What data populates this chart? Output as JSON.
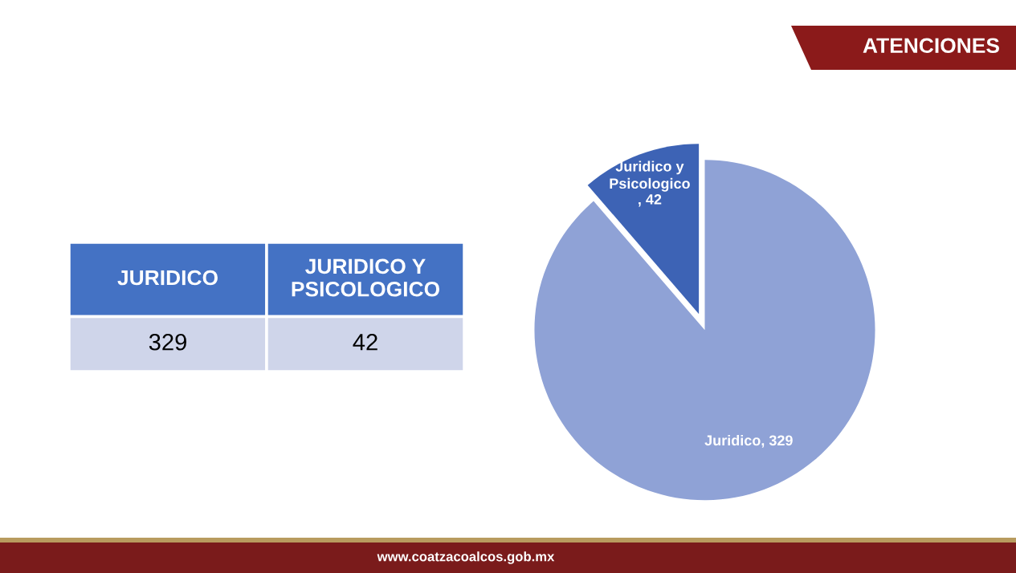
{
  "chart_data": {
    "type": "pie",
    "title": "ATENCIONES",
    "categories": [
      "Juridico",
      "Juridico y Psicologico"
    ],
    "values": [
      329,
      42
    ],
    "colors": [
      "#8fa2d6",
      "#3d63b5"
    ],
    "value_labels": [
      ", 329",
      ", 42"
    ],
    "annotations": [
      "JURIDICO",
      "JURIDICO Y PSICOLOGICO",
      "329",
      "42",
      "www.coatzacoalcos.gob.mx"
    ]
  }
}
